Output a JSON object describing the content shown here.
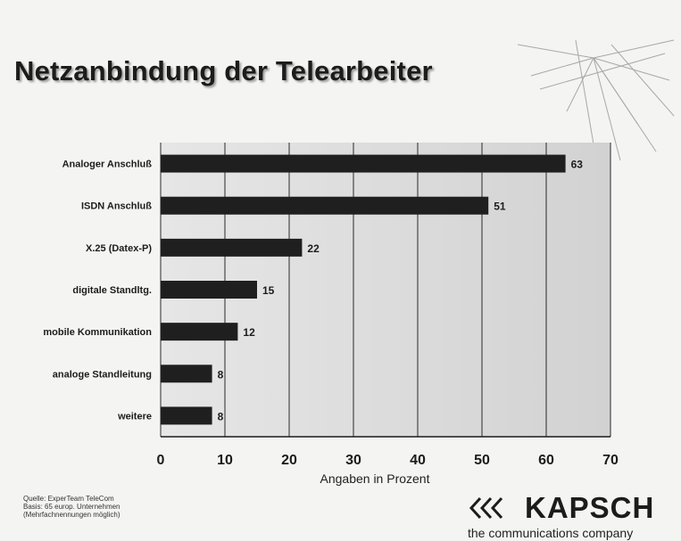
{
  "slide": {
    "title": "Netzanbindung der Telearbeiter",
    "source_lines": [
      "Quelle: ExperTeam TeleCom",
      "Basis: 65 europ. Unternehmen",
      "(Mehrfachnennungen möglich)"
    ],
    "logo": {
      "name": "KAPSCH",
      "tagline": "the communications company"
    }
  },
  "chart_data": {
    "type": "bar",
    "orientation": "horizontal",
    "categories": [
      "Analoger Anschluß",
      "ISDN Anschluß",
      "X.25 (Datex-P)",
      "digitale Standltg.",
      "mobile Kommunikation",
      "analoge Standleitung",
      "weitere"
    ],
    "values": [
      63,
      51,
      22,
      15,
      12,
      8,
      8
    ],
    "xlabel": "Angaben in Prozent",
    "xlim": [
      0,
      70
    ],
    "xticks": [
      0,
      10,
      20,
      30,
      40,
      50,
      60,
      70
    ],
    "grid": true,
    "data_labels": true,
    "colors": {
      "bar": "#1f1f1f",
      "plot_bg": "#dcdcdc",
      "grid": "#2a2a2a"
    }
  }
}
